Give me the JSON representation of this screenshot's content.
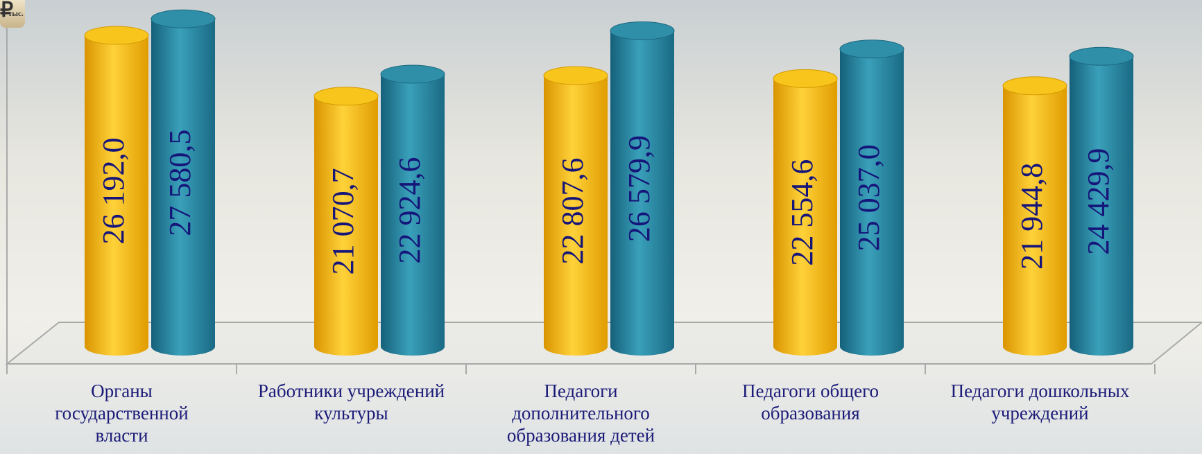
{
  "chart_data": {
    "type": "cylinder-bar",
    "currency_symbol": "₽",
    "unit": "тыс.",
    "categories": [
      "Органы государственной власти",
      "Работники учреждений культуры",
      "Педагоги дополнительного образования детей",
      "Педагоги общего образования",
      "Педагоги дошкольных учреждений"
    ],
    "series": [
      {
        "color": "#f2b705",
        "values": [
          26192.0,
          21070.7,
          22807.6,
          22554.6,
          21944.8
        ],
        "value_labels": [
          "26 192,0",
          "21 070,7",
          "22 807,6",
          "22 554,6",
          "21 944,8"
        ]
      },
      {
        "color": "#2a87a0",
        "values": [
          27580.5,
          22924.6,
          26579.9,
          25037.0,
          24429.9
        ],
        "value_labels": [
          "27 580,5",
          "22 924,6",
          "26 579,9",
          "25 037,0",
          "24 429,9"
        ]
      }
    ],
    "ylim": [
      0,
      28000
    ]
  }
}
